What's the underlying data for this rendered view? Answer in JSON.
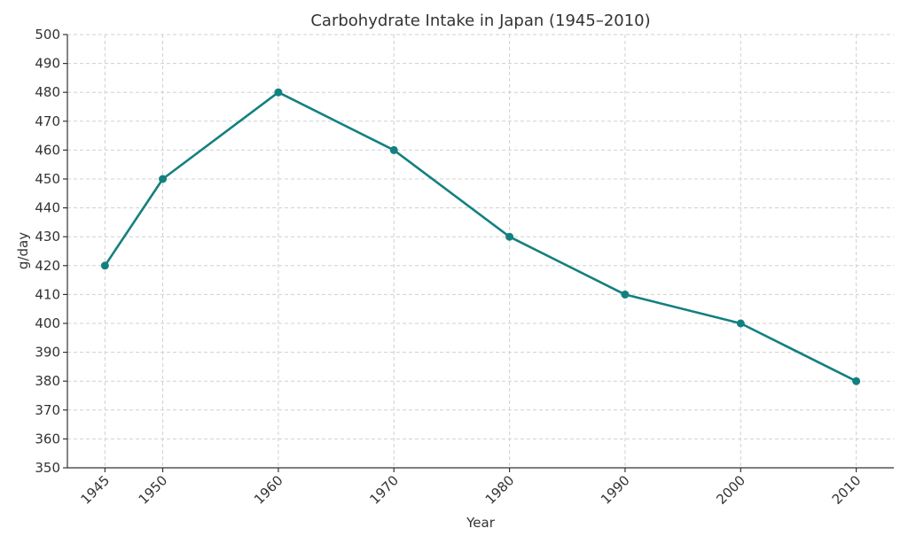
{
  "chart_data": {
    "type": "line",
    "title": "Carbohydrate Intake in Japan (1945–2010)",
    "xlabel": "Year",
    "ylabel": "g/day",
    "x": [
      1945,
      1950,
      1960,
      1970,
      1980,
      1990,
      2000,
      2010
    ],
    "series": [
      {
        "values": [
          420,
          450,
          480,
          460,
          430,
          410,
          400,
          380
        ]
      }
    ],
    "xticks": [
      "1945",
      "1950",
      "1960",
      "1970",
      "1980",
      "1990",
      "2000",
      "2010"
    ],
    "yticks": [
      350,
      360,
      370,
      380,
      390,
      400,
      410,
      420,
      430,
      440,
      450,
      460,
      470,
      480,
      490,
      500
    ],
    "xlim": [
      1941.75,
      2013.25
    ],
    "ylim": [
      350,
      500
    ],
    "grid": true,
    "markers": true,
    "line_color": "#138080"
  }
}
